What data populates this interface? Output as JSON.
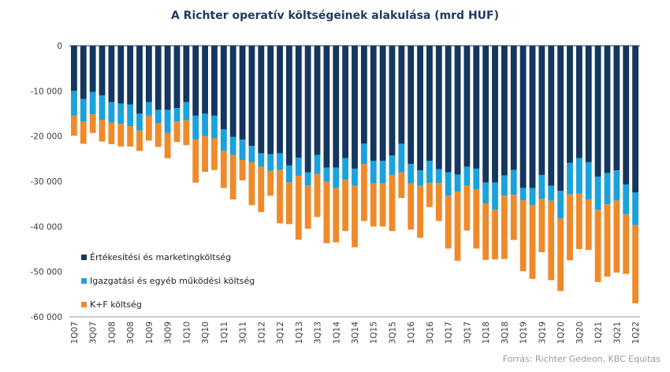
{
  "title": "A Richter operatív költségeinek alakulása (mrd HUF)",
  "source": "Forrás: Richter Gedeon, KBC Equitas",
  "chart_data": {
    "type": "bar",
    "stacked": true,
    "title": "A Richter operatív költségeinek alakulása (mrd HUF)",
    "xlabel": "",
    "ylabel": "",
    "ylim": [
      -60000,
      0
    ],
    "yticks": [
      0,
      -10000,
      -20000,
      -30000,
      -40000,
      -50000,
      -60000
    ],
    "ytick_labels": [
      "0",
      "-10 000",
      "-20 000",
      "-30 000",
      "-40 000",
      "-50 000",
      "-60 000"
    ],
    "grid": false,
    "legend_position": "bottom-left",
    "xtick_labels": [
      "1Q07",
      "3Q07",
      "1Q08",
      "3Q08",
      "1Q09",
      "3Q09",
      "1Q10",
      "3Q10",
      "1Q11",
      "3Q11",
      "1Q12",
      "3Q12",
      "1Q13",
      "3Q13",
      "1Q14",
      "3Q14",
      "1Q15",
      "3Q15",
      "1Q16",
      "3Q16",
      "1Q17",
      "3Q17",
      "1Q18",
      "3Q18",
      "1Q19",
      "3Q19",
      "1Q20",
      "3Q20",
      "1Q21",
      "3Q21",
      "1Q22"
    ],
    "categories": [
      "1Q07",
      "2Q07",
      "3Q07",
      "4Q07",
      "1Q08",
      "2Q08",
      "3Q08",
      "4Q08",
      "1Q09",
      "2Q09",
      "3Q09",
      "4Q09",
      "1Q10",
      "2Q10",
      "3Q10",
      "4Q10",
      "1Q11",
      "2Q11",
      "3Q11",
      "4Q11",
      "1Q12",
      "2Q12",
      "3Q12",
      "4Q12",
      "1Q13",
      "2Q13",
      "3Q13",
      "4Q13",
      "1Q14",
      "2Q14",
      "3Q14",
      "4Q14",
      "1Q15",
      "2Q15",
      "3Q15",
      "4Q15",
      "1Q16",
      "2Q16",
      "3Q16",
      "4Q16",
      "1Q17",
      "2Q17",
      "3Q17",
      "4Q17",
      "1Q18",
      "2Q18",
      "3Q18",
      "4Q18",
      "1Q19",
      "2Q19",
      "3Q19",
      "4Q19",
      "1Q20",
      "2Q20",
      "3Q20",
      "4Q20",
      "1Q21",
      "2Q21",
      "3Q21",
      "4Q21",
      "1Q22"
    ],
    "series": [
      {
        "name": "Értékesítési és marketingköltség",
        "color": "#14365f",
        "values": [
          -10000,
          -11800,
          -10200,
          -11000,
          -12500,
          -12800,
          -13000,
          -15000,
          -12500,
          -14200,
          -14200,
          -13800,
          -12500,
          -15500,
          -15000,
          -15500,
          -18500,
          -20200,
          -20800,
          -22200,
          -23800,
          -24000,
          -23800,
          -26500,
          -24800,
          -28000,
          -24200,
          -27000,
          -27000,
          -24900,
          -27200,
          -21700,
          -25500,
          -25500,
          -24300,
          -21700,
          -26200,
          -27600,
          -25500,
          -27300,
          -28000,
          -28500,
          -26800,
          -27200,
          -30300,
          -30300,
          -28700,
          -27500,
          -31500,
          -31500,
          -28600,
          -31000,
          -32100,
          -25900,
          -24900,
          -25800,
          -29000,
          -28200,
          -27600,
          -30700,
          -32500
        ]
      },
      {
        "name": "Igazgatási és egyéb működési költség",
        "color": "#1ba2dc",
        "values": [
          -5500,
          -5000,
          -5000,
          -5400,
          -4500,
          -4500,
          -4800,
          -3800,
          -3000,
          -3000,
          -5100,
          -3000,
          -4000,
          -5300,
          -5000,
          -5000,
          -4800,
          -4000,
          -4500,
          -3600,
          -3000,
          -3700,
          -3700,
          -3700,
          -4000,
          -3000,
          -4200,
          -3100,
          -4500,
          -4800,
          -3800,
          -4500,
          -5000,
          -5000,
          -4300,
          -6300,
          -4300,
          -3400,
          -4900,
          -3100,
          -5200,
          -3800,
          -4200,
          -4600,
          -4600,
          -6000,
          -4500,
          -5500,
          -2700,
          -3800,
          -5300,
          -3300,
          -6100,
          -7000,
          -7800,
          -8200,
          -7300,
          -6900,
          -6700,
          -6600,
          -7200
        ]
      },
      {
        "name": "K+F költség",
        "color": "#ef8a2b",
        "values": [
          -4400,
          -4900,
          -4100,
          -4800,
          -4800,
          -5000,
          -4500,
          -4500,
          -5500,
          -5200,
          -5600,
          -4500,
          -5500,
          -9500,
          -7900,
          -7000,
          -8200,
          -9800,
          -4500,
          -9500,
          -10000,
          -5500,
          -11800,
          -9300,
          -14100,
          -9500,
          -9500,
          -13600,
          -12000,
          -11300,
          -13600,
          -12600,
          -9500,
          -9500,
          -12400,
          -5700,
          -10200,
          -11500,
          -5300,
          -8400,
          -11700,
          -15300,
          -9900,
          -13100,
          -12500,
          -11000,
          -14000,
          -10000,
          -15700,
          -16300,
          -11800,
          -17600,
          -16100,
          -14600,
          -12300,
          -11200,
          -16000,
          -16000,
          -15900,
          -13200,
          -17300
        ]
      }
    ]
  }
}
